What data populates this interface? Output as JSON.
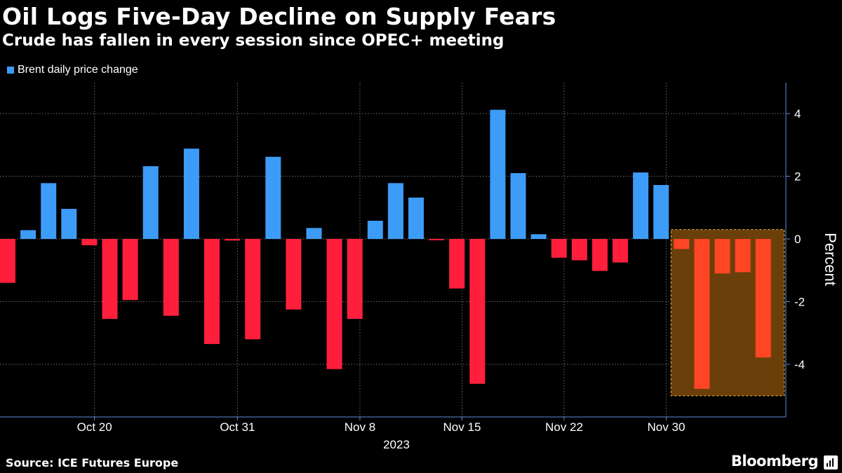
{
  "header": {
    "title": "Oil Logs Five-Day Decline on Supply Fears",
    "subtitle": "Crude has fallen in every session since OPEC+ meeting"
  },
  "legend": {
    "label": "Brent daily price change",
    "color": "#3d9cf7"
  },
  "footer": {
    "source": "Source: ICE Futures Europe",
    "brand": "Bloomberg"
  },
  "colors": {
    "positive": "#3d9cf7",
    "negative": "#ff1f3d",
    "highlight_bar": "#ff4524",
    "highlight_fill": "#6a3f0a",
    "highlight_border": "#e3a33a",
    "grid": "#6d6d6d",
    "axis": "#5a8ed9"
  },
  "chart_data": {
    "type": "bar",
    "title": "Oil Logs Five-Day Decline on Supply Fears",
    "subtitle": "Crude has fallen in every session since OPEC+ meeting",
    "xlabel": "2023",
    "ylabel": "Percent",
    "ylim": [
      -5.6,
      5
    ],
    "yticks": [
      4,
      2,
      0,
      -2,
      -4
    ],
    "ytick_labels": [
      "4",
      "2",
      "0",
      "-2",
      "-4"
    ],
    "xtick_labels": [
      "Oct 20",
      "Oct 31",
      "Nov 8",
      "Nov 15",
      "Nov 22",
      "Nov 30"
    ],
    "xtick_positions": [
      4.25,
      11.25,
      17.25,
      22.25,
      27.25,
      32.25
    ],
    "x_year_label": "2023",
    "legend": [
      "Brent daily price change"
    ],
    "series": [
      {
        "name": "Brent daily price change",
        "values": [
          -1.4,
          0.28,
          1.78,
          0.96,
          -0.2,
          -2.55,
          -1.95,
          2.32,
          -2.45,
          2.88,
          -3.35,
          -0.05,
          -3.2,
          2.62,
          -2.25,
          0.35,
          -4.15,
          -2.55,
          0.58,
          1.78,
          1.32,
          -0.04,
          -1.58,
          -4.62,
          4.12,
          2.1,
          0.15,
          -0.6,
          -0.68,
          -1.02,
          -0.75,
          2.12,
          1.72,
          -0.32,
          -4.78,
          -1.1,
          -1.06,
          -3.78
        ]
      }
    ],
    "highlight": {
      "start_index": 33,
      "end_index": 37,
      "y_range": [
        -5,
        0.3
      ]
    }
  }
}
